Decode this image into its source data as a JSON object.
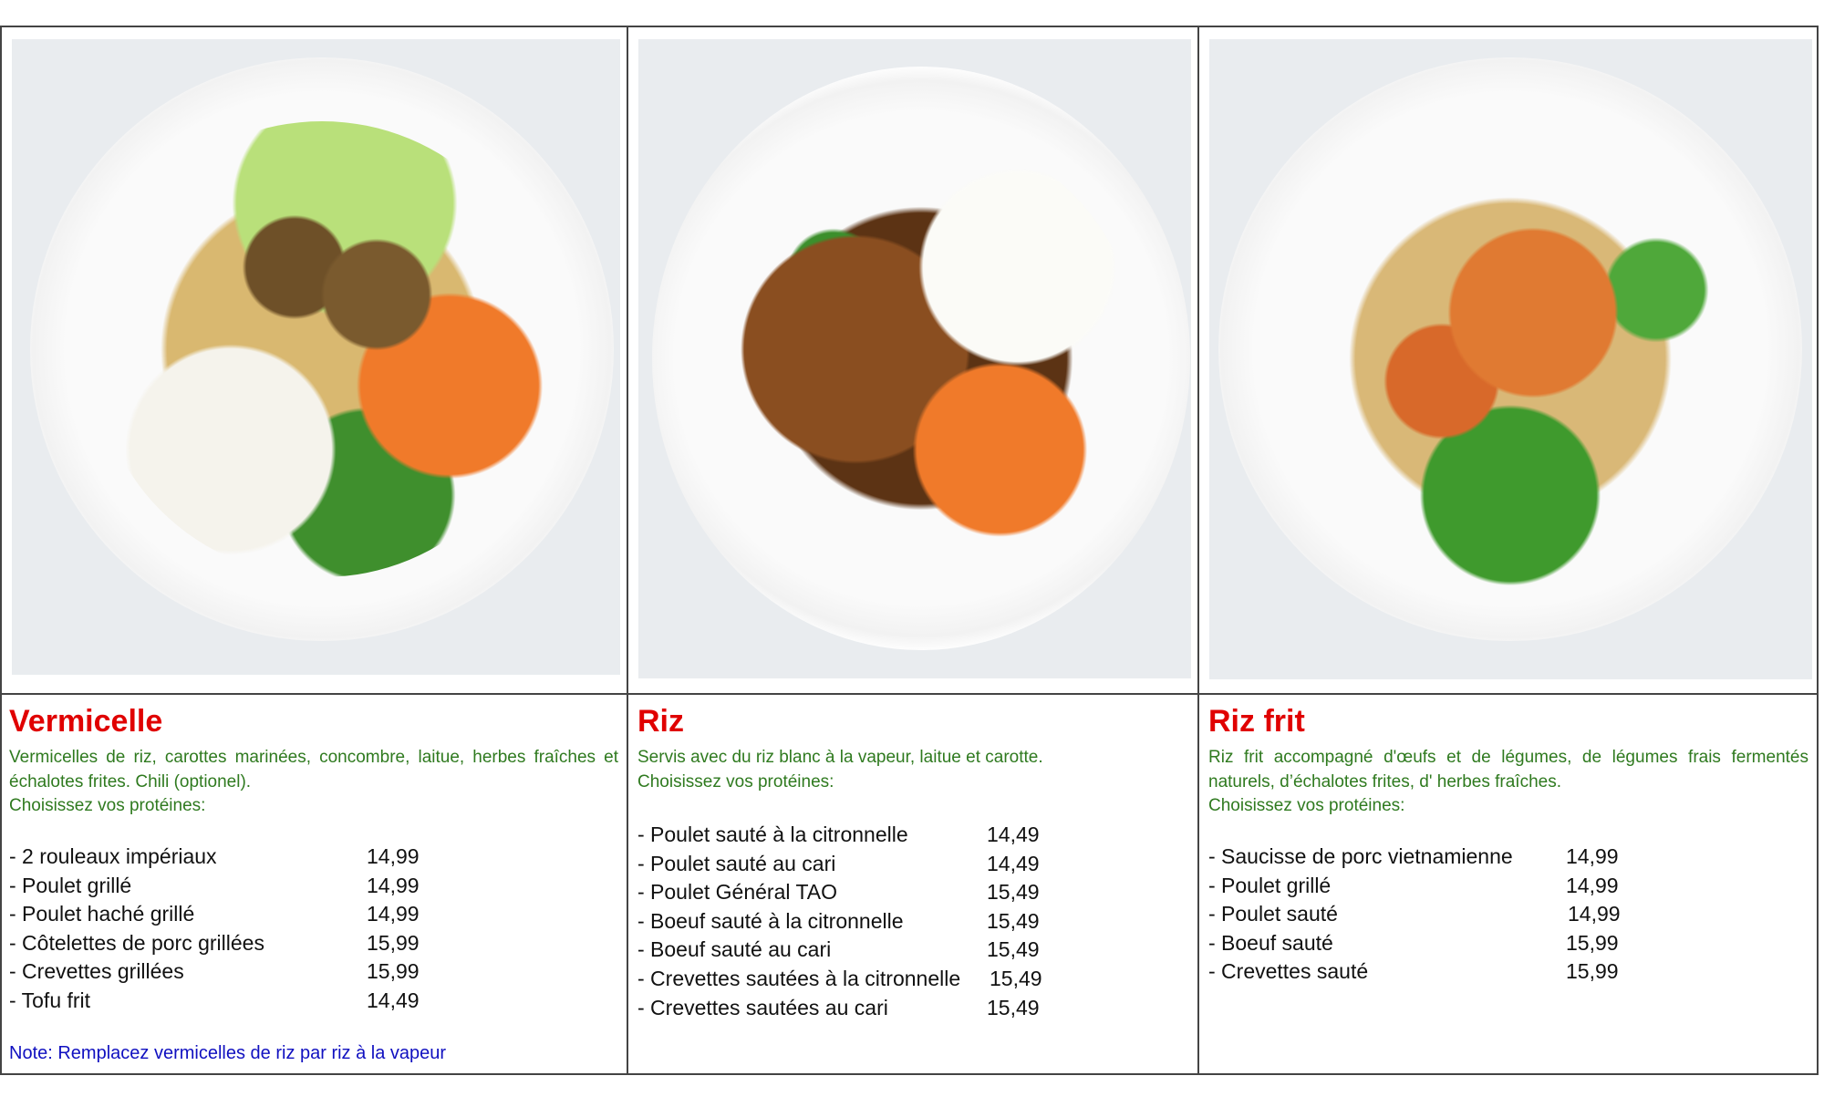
{
  "colors": {
    "title": "#e00000",
    "description": "#2f7a1f",
    "note": "#1010c0",
    "text": "#111111"
  },
  "sections": [
    {
      "title": "Vermicelle",
      "photo": "vermicelli-bowl-photo",
      "description": "Vermicelles de riz, carottes marinées, concombre, laitue, herbes fraîches et échalotes frites. Chili (optionel).",
      "prompt": "Choisissez vos protéines:",
      "items": [
        {
          "name": "- 2 rouleaux impériaux",
          "price": "14,99"
        },
        {
          "name": "- Poulet grillé",
          "price": "14,99"
        },
        {
          "name": "- Poulet haché grillé",
          "price": "14,99"
        },
        {
          "name": "- Côtelettes de porc grillées",
          "price": "15,99"
        },
        {
          "name": "- Crevettes grillées",
          "price": "15,99"
        },
        {
          "name": "- Tofu frit",
          "price": "14,49"
        }
      ],
      "note": "Note: Remplacez vermicelles de riz par riz à la vapeur"
    },
    {
      "title": "Riz",
      "photo": "rice-plate-photo",
      "description": "Servis avec du riz blanc à la vapeur, laitue et carotte.",
      "prompt": "Choisissez vos protéines:",
      "items": [
        {
          "name": "- Poulet sauté à la citronnelle",
          "price": "14,49"
        },
        {
          "name": "- Poulet sauté au cari",
          "price": "14,49"
        },
        {
          "name": "- Poulet Général TAO",
          "price": "15,49"
        },
        {
          "name": "- Boeuf sauté à la citronnelle",
          "price": "15,49"
        },
        {
          "name": "- Boeuf sauté au cari",
          "price": "15,49"
        },
        {
          "name": "- Crevettes sautées à la citronnelle",
          "price": "15,49"
        },
        {
          "name": "- Crevettes sautées au cari",
          "price": "15,49"
        }
      ]
    },
    {
      "title": "Riz frit",
      "photo": "fried-rice-bowl-photo",
      "description": "Riz frit accompagné d'œufs et de légumes, de légumes frais fermentés naturels, d’échalotes frites, d' herbes fraîches.",
      "prompt": "Choisissez vos protéines:",
      "items": [
        {
          "name": "- Saucisse de porc vietnamienne",
          "price": "14,99"
        },
        {
          "name": "- Poulet grillé",
          "price": "14,99"
        },
        {
          "name": "- Poulet sauté",
          "price": "14,99"
        },
        {
          "name": "- Boeuf sauté",
          "price": "15,99"
        },
        {
          "name": "- Crevettes sauté",
          "price": "15,99"
        }
      ]
    }
  ]
}
